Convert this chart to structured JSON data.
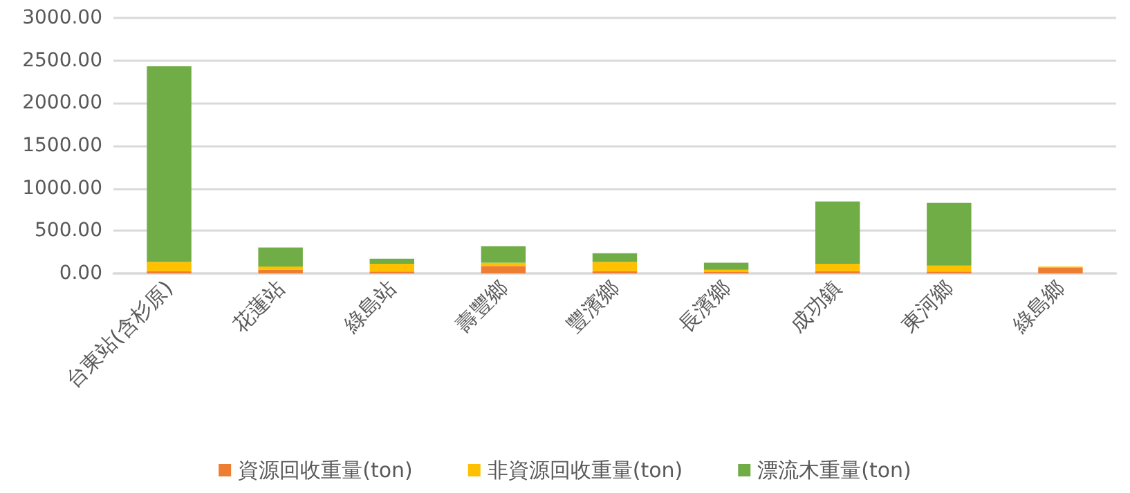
{
  "chart_data": {
    "type": "bar",
    "stacked": true,
    "categories": [
      "台東站(含杉原)",
      "花蓮站",
      "綠島站",
      "壽豐鄉",
      "豐濱鄉",
      "長濱鄉",
      "成功鎮",
      "東河鄉",
      "綠島鄉"
    ],
    "series": [
      {
        "name": "資源回收重量(ton)",
        "color": "#ed7d31",
        "values": [
          27,
          43,
          22,
          87,
          27,
          16,
          27,
          22,
          65
        ]
      },
      {
        "name": "非資源回收重量(ton)",
        "color": "#ffc000",
        "values": [
          108,
          38,
          92,
          38,
          108,
          27,
          87,
          70,
          16
        ]
      },
      {
        "name": "漂流木重量(ton)",
        "color": "#70ad47",
        "values": [
          2298,
          223,
          59,
          195,
          103,
          82,
          732,
          737,
          0
        ]
      }
    ],
    "ylim": [
      0,
      3000
    ],
    "yticks": [
      {
        "value": 0,
        "label": "0.00"
      },
      {
        "value": 500,
        "label": "500.00"
      },
      {
        "value": 1000,
        "label": "1000.00"
      },
      {
        "value": 1500,
        "label": "1500.00"
      },
      {
        "value": 2000,
        "label": "2000.00"
      },
      {
        "value": 2500,
        "label": "2500.00"
      },
      {
        "value": 3000,
        "label": "3000.00"
      }
    ],
    "grid": "y",
    "legend": "bottom"
  }
}
